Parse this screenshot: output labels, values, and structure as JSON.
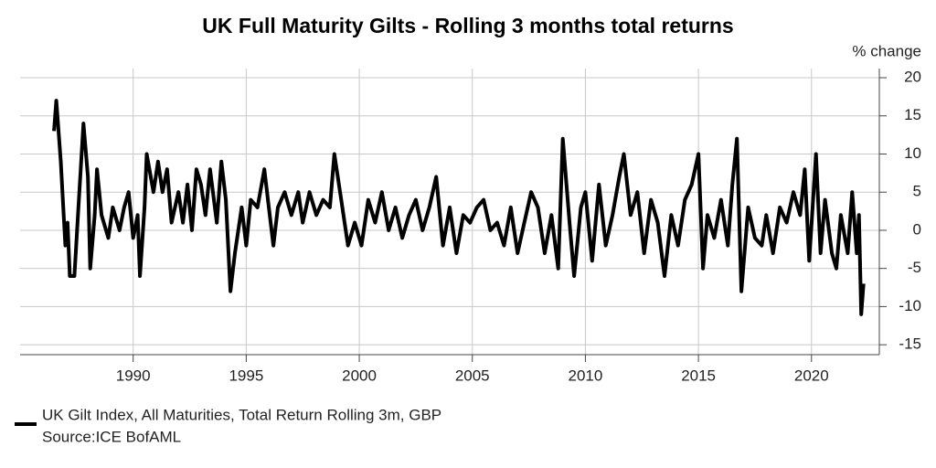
{
  "chart_data": {
    "type": "line",
    "title": "UK Full Maturity Gilts - Rolling 3 months total returns",
    "y_axis_label": "% change",
    "source": "Source:ICE BofAML",
    "x": [
      1986.5,
      1986.6,
      1986.8,
      1987.0,
      1987.1,
      1987.2,
      1987.4,
      1987.6,
      1987.8,
      1988.0,
      1988.1,
      1988.3,
      1988.4,
      1988.6,
      1988.9,
      1989.1,
      1989.4,
      1989.6,
      1989.8,
      1990.0,
      1990.2,
      1990.3,
      1990.5,
      1990.6,
      1990.9,
      1991.1,
      1991.3,
      1991.5,
      1991.7,
      1992.0,
      1992.2,
      1992.4,
      1992.6,
      1992.8,
      1993.0,
      1993.2,
      1993.4,
      1993.7,
      1993.9,
      1994.1,
      1994.3,
      1994.5,
      1994.8,
      1995.0,
      1995.2,
      1995.5,
      1995.8,
      1996.0,
      1996.2,
      1996.4,
      1996.7,
      1997.0,
      1997.3,
      1997.5,
      1997.8,
      1998.1,
      1998.4,
      1998.7,
      1998.9,
      1999.2,
      1999.5,
      1999.8,
      2000.1,
      2000.4,
      2000.7,
      2001.0,
      2001.3,
      2001.6,
      2001.9,
      2002.2,
      2002.5,
      2002.8,
      2003.1,
      2003.4,
      2003.7,
      2004.0,
      2004.3,
      2004.6,
      2004.9,
      2005.2,
      2005.5,
      2005.8,
      2006.1,
      2006.4,
      2006.7,
      2007.0,
      2007.3,
      2007.6,
      2007.9,
      2008.2,
      2008.5,
      2008.8,
      2009.0,
      2009.3,
      2009.5,
      2009.8,
      2010.0,
      2010.3,
      2010.6,
      2010.9,
      2011.2,
      2011.5,
      2011.7,
      2012.0,
      2012.3,
      2012.6,
      2012.9,
      2013.2,
      2013.5,
      2013.8,
      2014.1,
      2014.4,
      2014.7,
      2015.0,
      2015.2,
      2015.4,
      2015.7,
      2016.0,
      2016.3,
      2016.5,
      2016.7,
      2016.9,
      2017.2,
      2017.5,
      2017.8,
      2018.0,
      2018.3,
      2018.6,
      2018.9,
      2019.2,
      2019.5,
      2019.7,
      2019.9,
      2020.2,
      2020.4,
      2020.6,
      2020.9,
      2021.1,
      2021.3,
      2021.6,
      2021.8,
      2022.0,
      2022.1,
      2022.2,
      2022.3
    ],
    "series": [
      {
        "name": "UK Gilt Index, All Maturities, Total Return Rolling 3m, GBP",
        "color": "#000000",
        "values": [
          13,
          17,
          9,
          -2,
          1,
          -6,
          -6,
          4,
          14,
          7,
          -5,
          2,
          8,
          2,
          -1,
          3,
          0,
          3,
          5,
          -1,
          2,
          -6,
          3,
          10,
          5,
          9,
          5,
          8,
          1,
          5,
          1,
          6,
          0,
          8,
          6,
          2,
          8,
          1,
          9,
          4,
          -8,
          -3,
          3,
          -2,
          4,
          3,
          8,
          3,
          -2,
          3,
          5,
          2,
          5,
          1,
          5,
          2,
          4,
          3,
          10,
          4,
          -2,
          1,
          -2,
          4,
          1,
          5,
          0,
          3,
          -1,
          2,
          4,
          0,
          3,
          7,
          -2,
          3,
          -3,
          2,
          1,
          3,
          4,
          0,
          1,
          -2,
          3,
          -3,
          1,
          5,
          3,
          -3,
          2,
          -5,
          12,
          1,
          -6,
          3,
          5,
          -4,
          6,
          -2,
          2,
          7,
          10,
          2,
          5,
          -3,
          4,
          1,
          -6,
          2,
          -2,
          4,
          6,
          10,
          -5,
          2,
          -1,
          4,
          -2,
          6,
          12,
          -8,
          3,
          -1,
          -2,
          2,
          -3,
          3,
          1,
          5,
          2,
          8,
          -4,
          10,
          -3,
          4,
          -3,
          -5,
          2,
          -3,
          5,
          -3,
          2,
          -11,
          -7
        ]
      }
    ],
    "xlim": [
      1985,
      2023
    ],
    "ylim": [
      -16.3,
      21.2
    ],
    "xticks": [
      1990,
      1995,
      2000,
      2005,
      2010,
      2015,
      2020
    ],
    "yticks": [
      -15,
      -10,
      -5,
      0,
      5,
      10,
      15,
      20
    ],
    "grid": true
  }
}
